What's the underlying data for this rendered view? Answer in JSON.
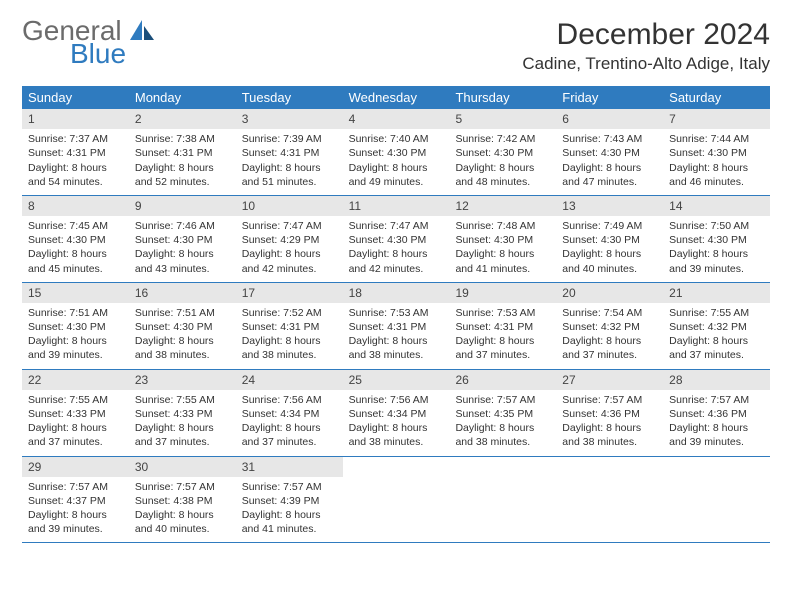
{
  "brand": {
    "text1": "General",
    "text2": "Blue"
  },
  "title": "December 2024",
  "location": "Cadine, Trentino-Alto Adige, Italy",
  "colors": {
    "header_bg": "#2f7bbf",
    "header_text": "#ffffff",
    "daynum_bg": "#e7e7e7",
    "border": "#2f7bbf",
    "body_text": "#333333",
    "logo_gray": "#6b6b6b",
    "logo_blue": "#2f7bbf"
  },
  "day_labels": [
    "Sunday",
    "Monday",
    "Tuesday",
    "Wednesday",
    "Thursday",
    "Friday",
    "Saturday"
  ],
  "weeks": [
    [
      {
        "n": "1",
        "sr": "Sunrise: 7:37 AM",
        "ss": "Sunset: 4:31 PM",
        "d1": "Daylight: 8 hours",
        "d2": "and 54 minutes."
      },
      {
        "n": "2",
        "sr": "Sunrise: 7:38 AM",
        "ss": "Sunset: 4:31 PM",
        "d1": "Daylight: 8 hours",
        "d2": "and 52 minutes."
      },
      {
        "n": "3",
        "sr": "Sunrise: 7:39 AM",
        "ss": "Sunset: 4:31 PM",
        "d1": "Daylight: 8 hours",
        "d2": "and 51 minutes."
      },
      {
        "n": "4",
        "sr": "Sunrise: 7:40 AM",
        "ss": "Sunset: 4:30 PM",
        "d1": "Daylight: 8 hours",
        "d2": "and 49 minutes."
      },
      {
        "n": "5",
        "sr": "Sunrise: 7:42 AM",
        "ss": "Sunset: 4:30 PM",
        "d1": "Daylight: 8 hours",
        "d2": "and 48 minutes."
      },
      {
        "n": "6",
        "sr": "Sunrise: 7:43 AM",
        "ss": "Sunset: 4:30 PM",
        "d1": "Daylight: 8 hours",
        "d2": "and 47 minutes."
      },
      {
        "n": "7",
        "sr": "Sunrise: 7:44 AM",
        "ss": "Sunset: 4:30 PM",
        "d1": "Daylight: 8 hours",
        "d2": "and 46 minutes."
      }
    ],
    [
      {
        "n": "8",
        "sr": "Sunrise: 7:45 AM",
        "ss": "Sunset: 4:30 PM",
        "d1": "Daylight: 8 hours",
        "d2": "and 45 minutes."
      },
      {
        "n": "9",
        "sr": "Sunrise: 7:46 AM",
        "ss": "Sunset: 4:30 PM",
        "d1": "Daylight: 8 hours",
        "d2": "and 43 minutes."
      },
      {
        "n": "10",
        "sr": "Sunrise: 7:47 AM",
        "ss": "Sunset: 4:29 PM",
        "d1": "Daylight: 8 hours",
        "d2": "and 42 minutes."
      },
      {
        "n": "11",
        "sr": "Sunrise: 7:47 AM",
        "ss": "Sunset: 4:30 PM",
        "d1": "Daylight: 8 hours",
        "d2": "and 42 minutes."
      },
      {
        "n": "12",
        "sr": "Sunrise: 7:48 AM",
        "ss": "Sunset: 4:30 PM",
        "d1": "Daylight: 8 hours",
        "d2": "and 41 minutes."
      },
      {
        "n": "13",
        "sr": "Sunrise: 7:49 AM",
        "ss": "Sunset: 4:30 PM",
        "d1": "Daylight: 8 hours",
        "d2": "and 40 minutes."
      },
      {
        "n": "14",
        "sr": "Sunrise: 7:50 AM",
        "ss": "Sunset: 4:30 PM",
        "d1": "Daylight: 8 hours",
        "d2": "and 39 minutes."
      }
    ],
    [
      {
        "n": "15",
        "sr": "Sunrise: 7:51 AM",
        "ss": "Sunset: 4:30 PM",
        "d1": "Daylight: 8 hours",
        "d2": "and 39 minutes."
      },
      {
        "n": "16",
        "sr": "Sunrise: 7:51 AM",
        "ss": "Sunset: 4:30 PM",
        "d1": "Daylight: 8 hours",
        "d2": "and 38 minutes."
      },
      {
        "n": "17",
        "sr": "Sunrise: 7:52 AM",
        "ss": "Sunset: 4:31 PM",
        "d1": "Daylight: 8 hours",
        "d2": "and 38 minutes."
      },
      {
        "n": "18",
        "sr": "Sunrise: 7:53 AM",
        "ss": "Sunset: 4:31 PM",
        "d1": "Daylight: 8 hours",
        "d2": "and 38 minutes."
      },
      {
        "n": "19",
        "sr": "Sunrise: 7:53 AM",
        "ss": "Sunset: 4:31 PM",
        "d1": "Daylight: 8 hours",
        "d2": "and 37 minutes."
      },
      {
        "n": "20",
        "sr": "Sunrise: 7:54 AM",
        "ss": "Sunset: 4:32 PM",
        "d1": "Daylight: 8 hours",
        "d2": "and 37 minutes."
      },
      {
        "n": "21",
        "sr": "Sunrise: 7:55 AM",
        "ss": "Sunset: 4:32 PM",
        "d1": "Daylight: 8 hours",
        "d2": "and 37 minutes."
      }
    ],
    [
      {
        "n": "22",
        "sr": "Sunrise: 7:55 AM",
        "ss": "Sunset: 4:33 PM",
        "d1": "Daylight: 8 hours",
        "d2": "and 37 minutes."
      },
      {
        "n": "23",
        "sr": "Sunrise: 7:55 AM",
        "ss": "Sunset: 4:33 PM",
        "d1": "Daylight: 8 hours",
        "d2": "and 37 minutes."
      },
      {
        "n": "24",
        "sr": "Sunrise: 7:56 AM",
        "ss": "Sunset: 4:34 PM",
        "d1": "Daylight: 8 hours",
        "d2": "and 37 minutes."
      },
      {
        "n": "25",
        "sr": "Sunrise: 7:56 AM",
        "ss": "Sunset: 4:34 PM",
        "d1": "Daylight: 8 hours",
        "d2": "and 38 minutes."
      },
      {
        "n": "26",
        "sr": "Sunrise: 7:57 AM",
        "ss": "Sunset: 4:35 PM",
        "d1": "Daylight: 8 hours",
        "d2": "and 38 minutes."
      },
      {
        "n": "27",
        "sr": "Sunrise: 7:57 AM",
        "ss": "Sunset: 4:36 PM",
        "d1": "Daylight: 8 hours",
        "d2": "and 38 minutes."
      },
      {
        "n": "28",
        "sr": "Sunrise: 7:57 AM",
        "ss": "Sunset: 4:36 PM",
        "d1": "Daylight: 8 hours",
        "d2": "and 39 minutes."
      }
    ],
    [
      {
        "n": "29",
        "sr": "Sunrise: 7:57 AM",
        "ss": "Sunset: 4:37 PM",
        "d1": "Daylight: 8 hours",
        "d2": "and 39 minutes."
      },
      {
        "n": "30",
        "sr": "Sunrise: 7:57 AM",
        "ss": "Sunset: 4:38 PM",
        "d1": "Daylight: 8 hours",
        "d2": "and 40 minutes."
      },
      {
        "n": "31",
        "sr": "Sunrise: 7:57 AM",
        "ss": "Sunset: 4:39 PM",
        "d1": "Daylight: 8 hours",
        "d2": "and 41 minutes."
      },
      {
        "empty": true
      },
      {
        "empty": true
      },
      {
        "empty": true
      },
      {
        "empty": true
      }
    ]
  ]
}
